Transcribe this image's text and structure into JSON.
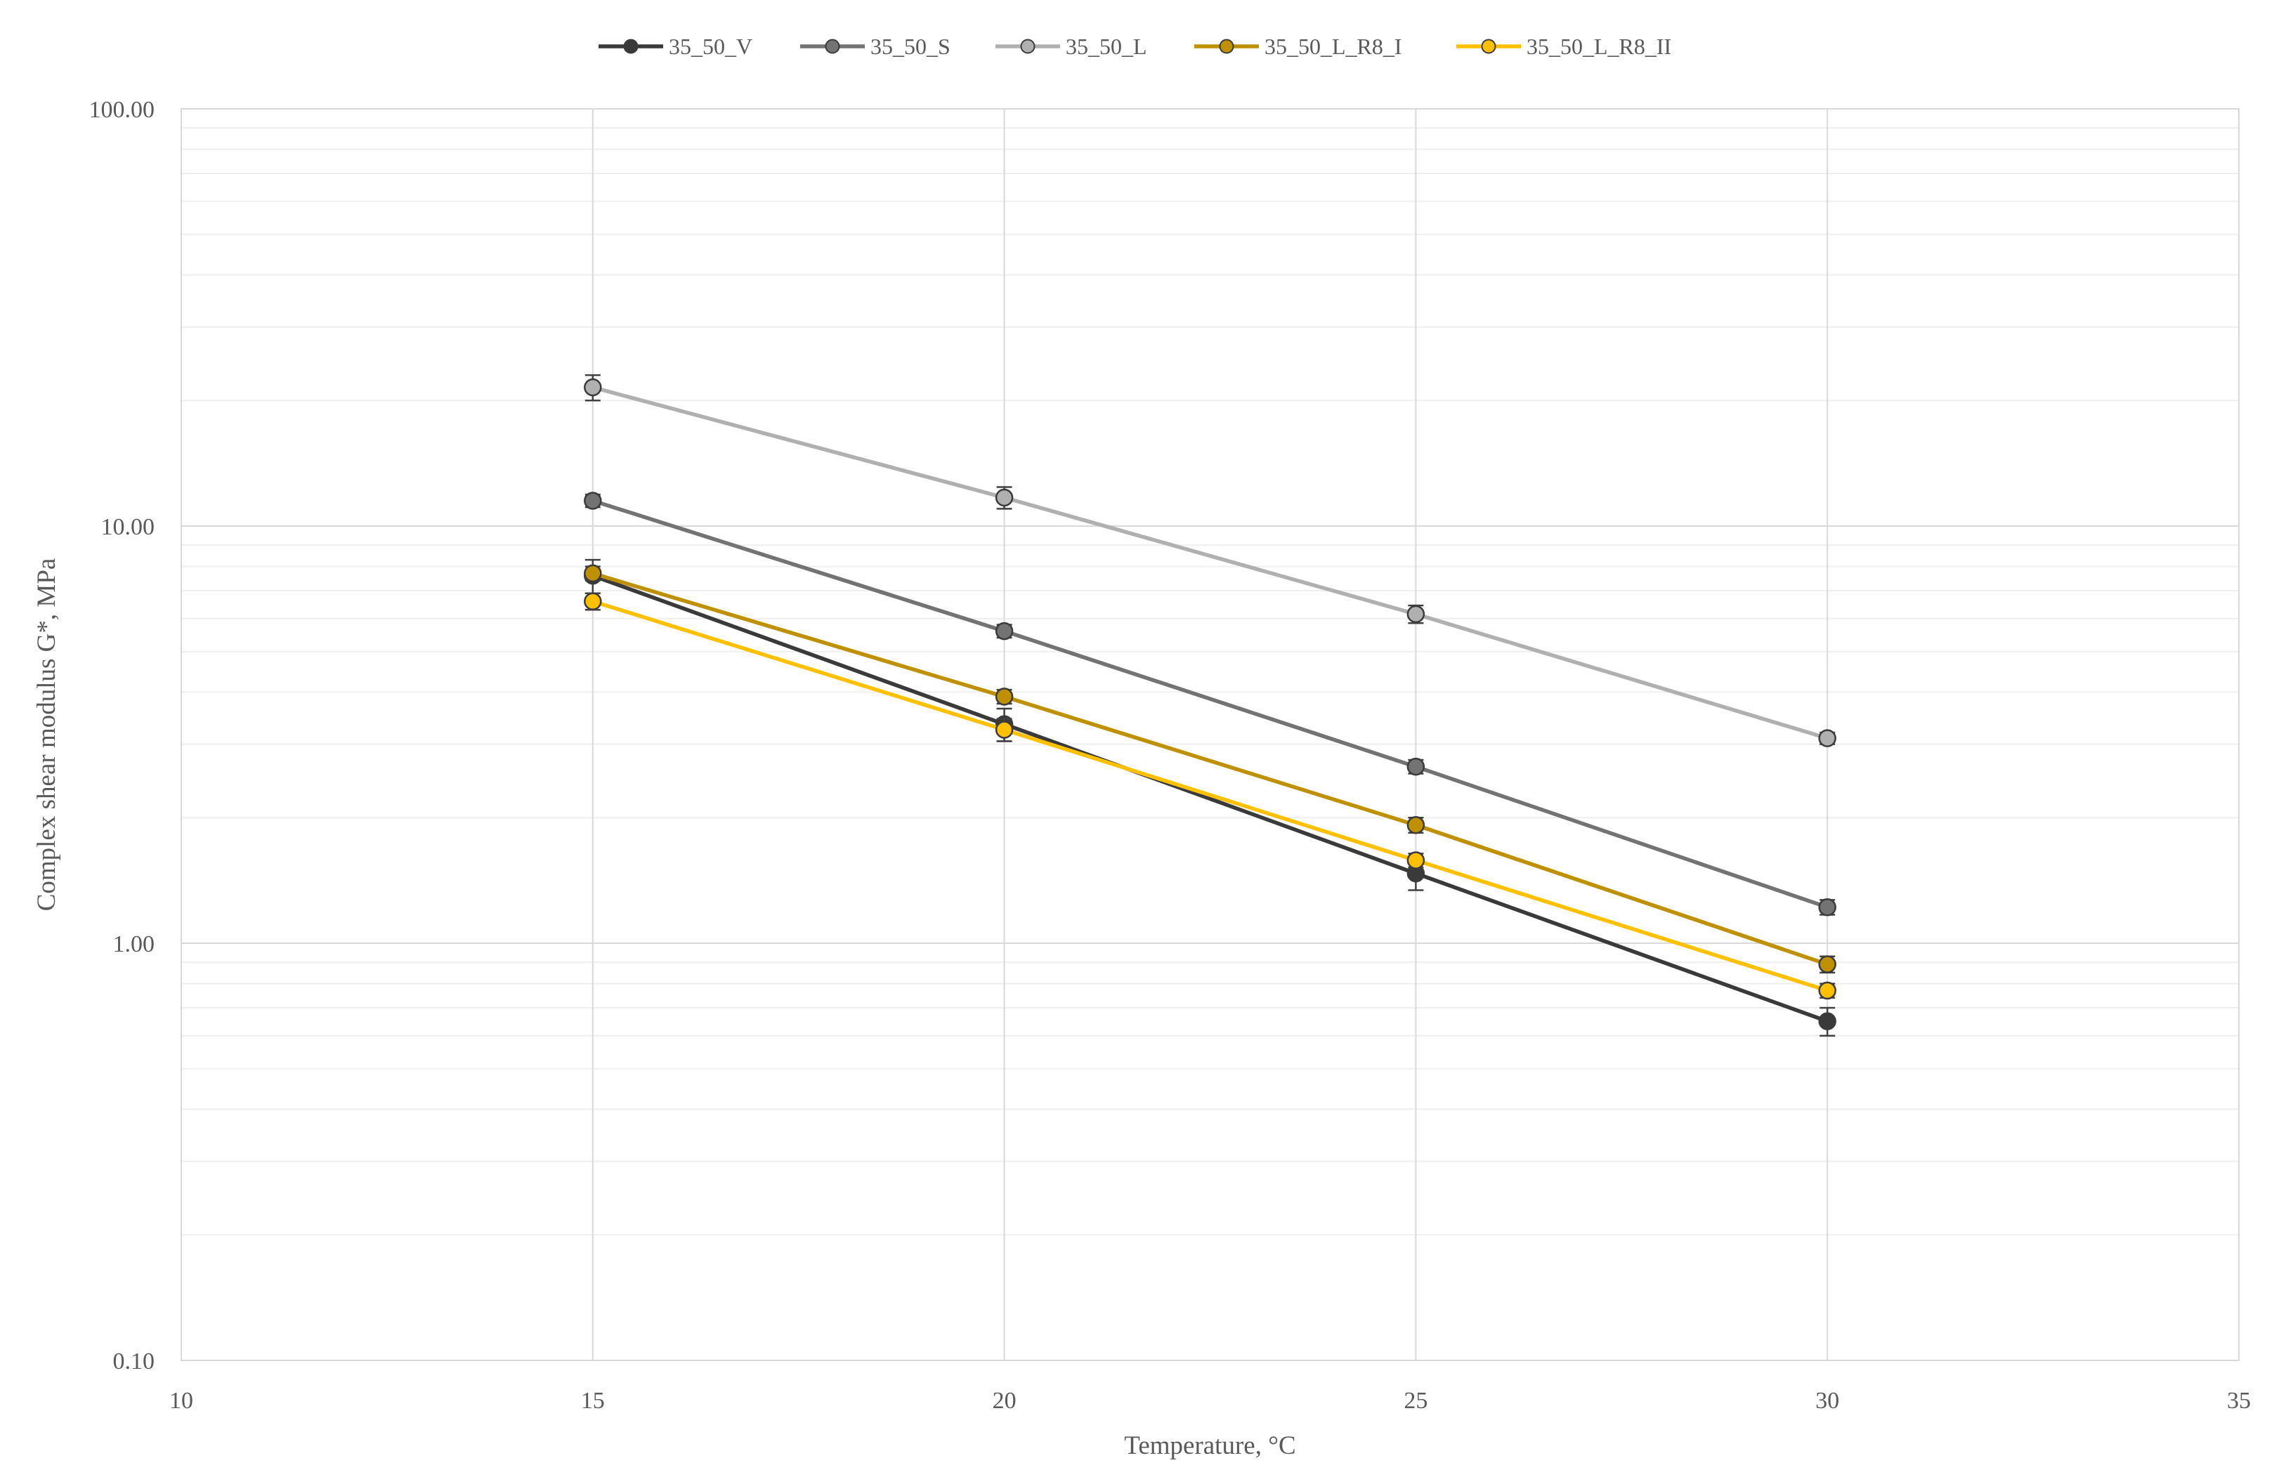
{
  "chart_data": {
    "type": "line",
    "title": "",
    "xlabel": "Temperature, °C",
    "ylabel": "Complex shear modulus G*, MPa",
    "y_scale": "log",
    "xlim": [
      10,
      35
    ],
    "ylim": [
      0.1,
      100
    ],
    "x_ticks": [
      "10",
      "15",
      "20",
      "25",
      "30",
      "35"
    ],
    "y_ticks": [
      "0.10",
      "1.00",
      "10.00",
      "100.00"
    ],
    "grid": true,
    "legend_position": "top-center",
    "x": [
      15,
      20,
      25,
      30
    ],
    "series": [
      {
        "name": "35_50_V",
        "color": "#3a3a3a",
        "values": [
          7.6,
          3.35,
          1.47,
          0.65
        ],
        "error": [
          0.7,
          0.3,
          0.13,
          0.05
        ]
      },
      {
        "name": "35_50_S",
        "color": "#737373",
        "values": [
          11.5,
          5.6,
          2.65,
          1.22
        ],
        "error": [
          0.4,
          0.2,
          0.1,
          0.05
        ]
      },
      {
        "name": "35_50_L",
        "color": "#b0b0b0",
        "values": [
          21.5,
          11.7,
          6.15,
          3.1
        ],
        "error": [
          1.5,
          0.7,
          0.3,
          0.1
        ]
      },
      {
        "name": "35_50_L_R8_I",
        "color": "#bf9000",
        "values": [
          7.7,
          3.9,
          1.92,
          0.89
        ],
        "error": [
          0.3,
          0.15,
          0.08,
          0.04
        ]
      },
      {
        "name": "35_50_L_R8_II",
        "color": "#ffc000",
        "values": [
          6.6,
          3.25,
          1.58,
          0.77
        ],
        "error": [
          0.3,
          0.2,
          0.06,
          0.03
        ]
      }
    ]
  }
}
